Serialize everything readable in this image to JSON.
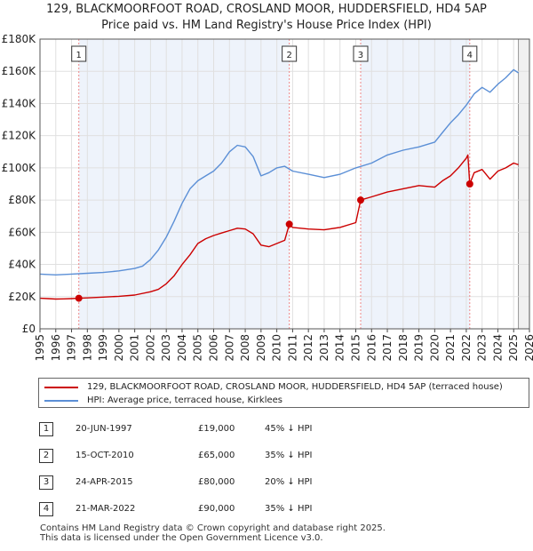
{
  "title_line1": "129, BLACKMOORFOOT ROAD, CROSLAND MOOR, HUDDERSFIELD, HD4 5AP",
  "title_line2": "Price paid vs. HM Land Registry's House Price Index (HPI)",
  "colors": {
    "property": "#cc0000",
    "hpi": "#5b8fd6",
    "grid": "#e0e0e0",
    "vline": "#ee8888",
    "shade": "#eef3fb"
  },
  "chart_data": {
    "type": "line",
    "title": "Price paid vs. HM Land Registry's House Price Index (HPI)",
    "xlabel": "",
    "ylabel": "",
    "xlim": [
      1995,
      2026
    ],
    "ylim": [
      0,
      180000
    ],
    "y_ticks": [
      {
        "value": 0,
        "label": "£0"
      },
      {
        "value": 20000,
        "label": "£20K"
      },
      {
        "value": 40000,
        "label": "£40K"
      },
      {
        "value": 60000,
        "label": "£60K"
      },
      {
        "value": 80000,
        "label": "£80K"
      },
      {
        "value": 100000,
        "label": "£100K"
      },
      {
        "value": 120000,
        "label": "£120K"
      },
      {
        "value": 140000,
        "label": "£140K"
      },
      {
        "value": 160000,
        "label": "£160K"
      },
      {
        "value": 180000,
        "label": "£180K"
      }
    ],
    "x_ticks": [
      "1995",
      "1996",
      "1997",
      "1998",
      "1999",
      "2000",
      "2001",
      "2002",
      "2003",
      "2004",
      "2005",
      "2006",
      "2007",
      "2008",
      "2009",
      "2010",
      "2011",
      "2012",
      "2013",
      "2014",
      "2015",
      "2016",
      "2017",
      "2018",
      "2019",
      "2020",
      "2021",
      "2022",
      "2023",
      "2024",
      "2025",
      "2026"
    ],
    "series": [
      {
        "name": "129, BLACKMOORFOOT ROAD, CROSLAND MOOR, HUDDERSFIELD, HD4 5AP (terraced house)",
        "x": [
          1995.0,
          1995.5,
          1996.0,
          1996.5,
          1997.0,
          1997.46,
          1998.0,
          1999.0,
          2000.0,
          2001.0,
          2002.0,
          2002.5,
          2003.0,
          2003.5,
          2004.0,
          2004.5,
          2005.0,
          2005.5,
          2006.0,
          2006.5,
          2007.0,
          2007.5,
          2008.0,
          2008.5,
          2009.0,
          2009.5,
          2010.0,
          2010.5,
          2010.79,
          2011.0,
          2011.5,
          2012.0,
          2013.0,
          2014.0,
          2015.0,
          2015.31,
          2016.0,
          2017.0,
          2018.0,
          2019.0,
          2020.0,
          2020.5,
          2021.0,
          2021.5,
          2022.0,
          2022.1,
          2022.22,
          2022.5,
          2023.0,
          2023.5,
          2024.0,
          2024.5,
          2025.0,
          2025.3
        ],
        "values": [
          19000,
          18800,
          18500,
          18600,
          18800,
          19000,
          19200,
          19700,
          20200,
          21000,
          23000,
          24500,
          28000,
          33000,
          40000,
          46000,
          53000,
          56000,
          58000,
          59500,
          61000,
          62500,
          62000,
          59000,
          52000,
          51000,
          53000,
          55000,
          65000,
          63000,
          62500,
          62000,
          61500,
          63000,
          66000,
          80000,
          82000,
          85000,
          87000,
          89000,
          88000,
          92000,
          95000,
          100000,
          106000,
          108000,
          90000,
          97000,
          99000,
          93000,
          98000,
          100000,
          103000,
          102000
        ]
      },
      {
        "name": "HPI: Average price, terraced house, Kirklees",
        "x": [
          1995.0,
          1996.0,
          1997.0,
          1998.0,
          1999.0,
          2000.0,
          2001.0,
          2001.5,
          2002.0,
          2002.5,
          2003.0,
          2003.5,
          2004.0,
          2004.5,
          2005.0,
          2005.5,
          2006.0,
          2006.5,
          2007.0,
          2007.5,
          2008.0,
          2008.5,
          2009.0,
          2009.5,
          2010.0,
          2010.5,
          2011.0,
          2012.0,
          2013.0,
          2014.0,
          2015.0,
          2016.0,
          2017.0,
          2018.0,
          2019.0,
          2020.0,
          2020.5,
          2021.0,
          2021.5,
          2022.0,
          2022.5,
          2023.0,
          2023.5,
          2024.0,
          2024.5,
          2025.0,
          2025.3
        ],
        "values": [
          34000,
          33500,
          34000,
          34500,
          35000,
          36000,
          37500,
          39000,
          43000,
          49000,
          57000,
          67000,
          78000,
          87000,
          92000,
          95000,
          98000,
          103000,
          110000,
          114000,
          113000,
          107000,
          95000,
          97000,
          100000,
          101000,
          98000,
          96000,
          94000,
          96000,
          100000,
          103000,
          108000,
          111000,
          113000,
          116000,
          122000,
          128000,
          133000,
          139000,
          146000,
          150000,
          147000,
          152000,
          156000,
          161000,
          159000
        ]
      }
    ],
    "transactions": [
      {
        "n": "1",
        "x": 1997.46,
        "value": 19000
      },
      {
        "n": "2",
        "x": 2010.79,
        "value": 65000
      },
      {
        "n": "3",
        "x": 2015.31,
        "value": 80000
      },
      {
        "n": "4",
        "x": 2022.22,
        "value": 90000
      }
    ]
  },
  "legend": {
    "property": "129, BLACKMOORFOOT ROAD, CROSLAND MOOR, HUDDERSFIELD, HD4 5AP (terraced house)",
    "hpi": "HPI: Average price, terraced house, Kirklees"
  },
  "table": [
    {
      "n": "1",
      "date": "20-JUN-1997",
      "price": "£19,000",
      "hpi": "45% ↓ HPI"
    },
    {
      "n": "2",
      "date": "15-OCT-2010",
      "price": "£65,000",
      "hpi": "35% ↓ HPI"
    },
    {
      "n": "3",
      "date": "24-APR-2015",
      "price": "£80,000",
      "hpi": "20% ↓ HPI"
    },
    {
      "n": "4",
      "date": "21-MAR-2022",
      "price": "£90,000",
      "hpi": "35% ↓ HPI"
    }
  ],
  "footer_line1": "Contains HM Land Registry data © Crown copyright and database right 2025.",
  "footer_line2": "This data is licensed under the Open Government Licence v3.0."
}
